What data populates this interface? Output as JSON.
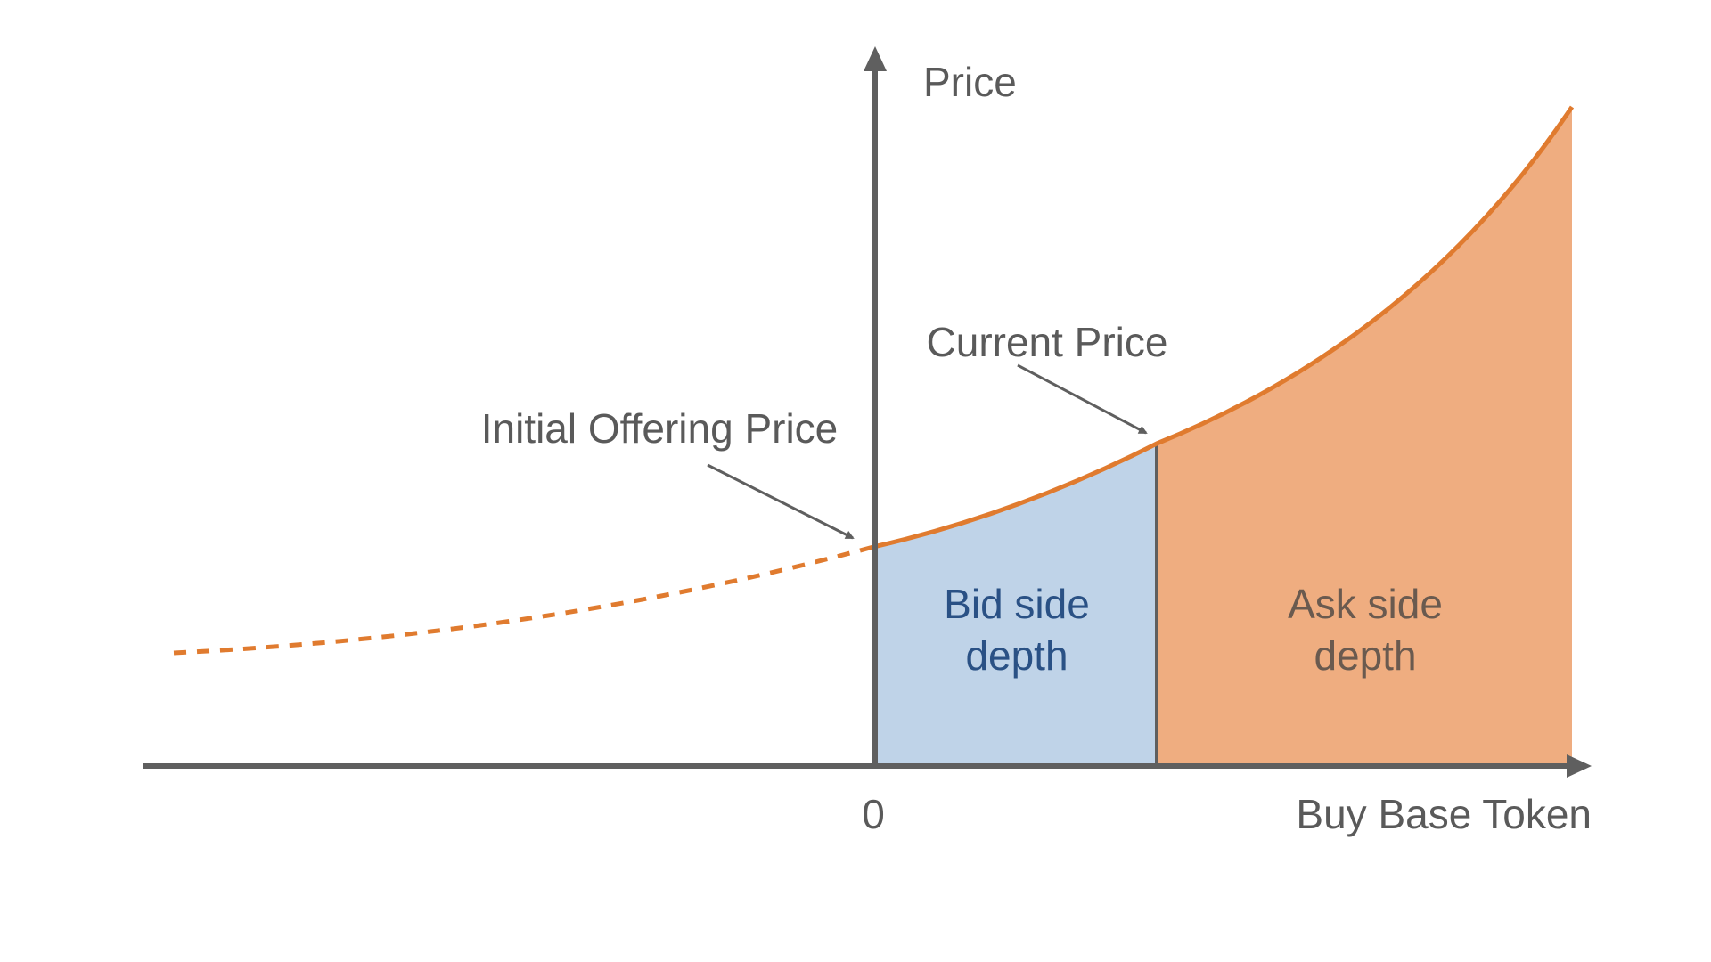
{
  "labels": {
    "y_axis": "Price",
    "x_axis": "Buy Base Token",
    "origin": "0",
    "current_price": "Current Price",
    "initial_offering_price": "Initial Offering Price",
    "bid_line1": "Bid side",
    "bid_line2": "depth",
    "ask_line1": "Ask side",
    "ask_line2": "depth"
  },
  "colors": {
    "axis": "#5f5f5f",
    "curve": "#e07b2f",
    "bid_fill": "#bfd3e8",
    "ask_fill": "#efad80",
    "bid_text": "#2a5185",
    "ask_text": "#6a5a4f",
    "label_text": "#5a5a5a"
  }
}
